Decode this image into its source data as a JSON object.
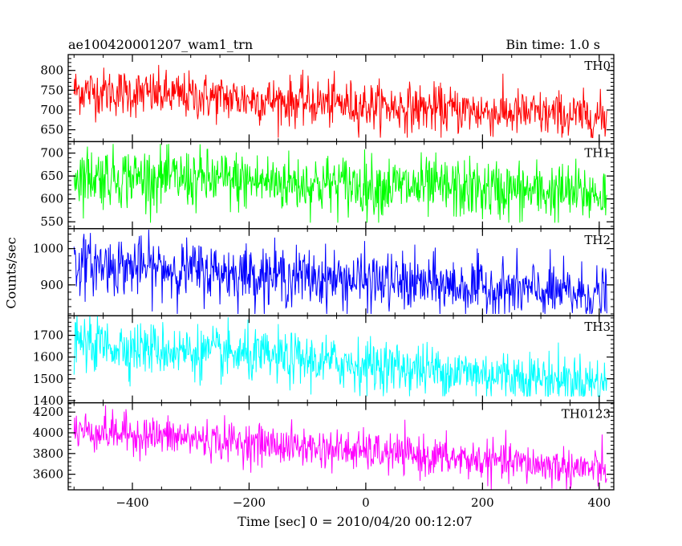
{
  "header": {
    "title": "ae100420001207_wam1_trn",
    "bin_time": "Bin time: 1.0 s"
  },
  "chart_data": {
    "type": "line",
    "xlabel": "Time [sec] 0 = 2010/04/20 00:12:07",
    "ylabel": "Counts/sec",
    "xlim": [
      -510,
      425
    ],
    "x_ticks": [
      -400,
      -200,
      0,
      200,
      400
    ],
    "x_range": [
      -500,
      413
    ],
    "bin_time_s": 1.0,
    "panels": [
      {
        "name": "TH0",
        "color": "#ff0000",
        "ylim": [
          620,
          840
        ],
        "yticks": [
          650,
          700,
          750,
          800
        ],
        "trend": {
          "start": 750,
          "end": 680
        },
        "noise": 30,
        "range": [
          630,
          850
        ]
      },
      {
        "name": "TH1",
        "color": "#00ff00",
        "ylim": [
          535,
          725
        ],
        "yticks": [
          550,
          600,
          650,
          700
        ],
        "trend": {
          "start": 652,
          "end": 610
        },
        "noise": 33,
        "range": [
          548,
          720
        ]
      },
      {
        "name": "TH2",
        "color": "#0000ff",
        "ylim": [
          815,
          1055
        ],
        "yticks": [
          900,
          1000
        ],
        "trend": {
          "start": 960,
          "end": 870
        },
        "noise": 40,
        "range": [
          820,
          1060
        ]
      },
      {
        "name": "TH3",
        "color": "#00ffff",
        "ylim": [
          1390,
          1790
        ],
        "yticks": [
          1400,
          1500,
          1600,
          1700
        ],
        "trend": {
          "start": 1665,
          "end": 1480
        },
        "noise": 60,
        "range": [
          1420,
          1800
        ]
      },
      {
        "name": "TH0123",
        "color": "#ff00ff",
        "ylim": [
          3450,
          4290
        ],
        "yticks": [
          3600,
          3800,
          4000,
          4200
        ],
        "trend": {
          "start": 4030,
          "end": 3640
        },
        "noise": 95,
        "range": [
          3430,
          4290
        ]
      }
    ]
  }
}
